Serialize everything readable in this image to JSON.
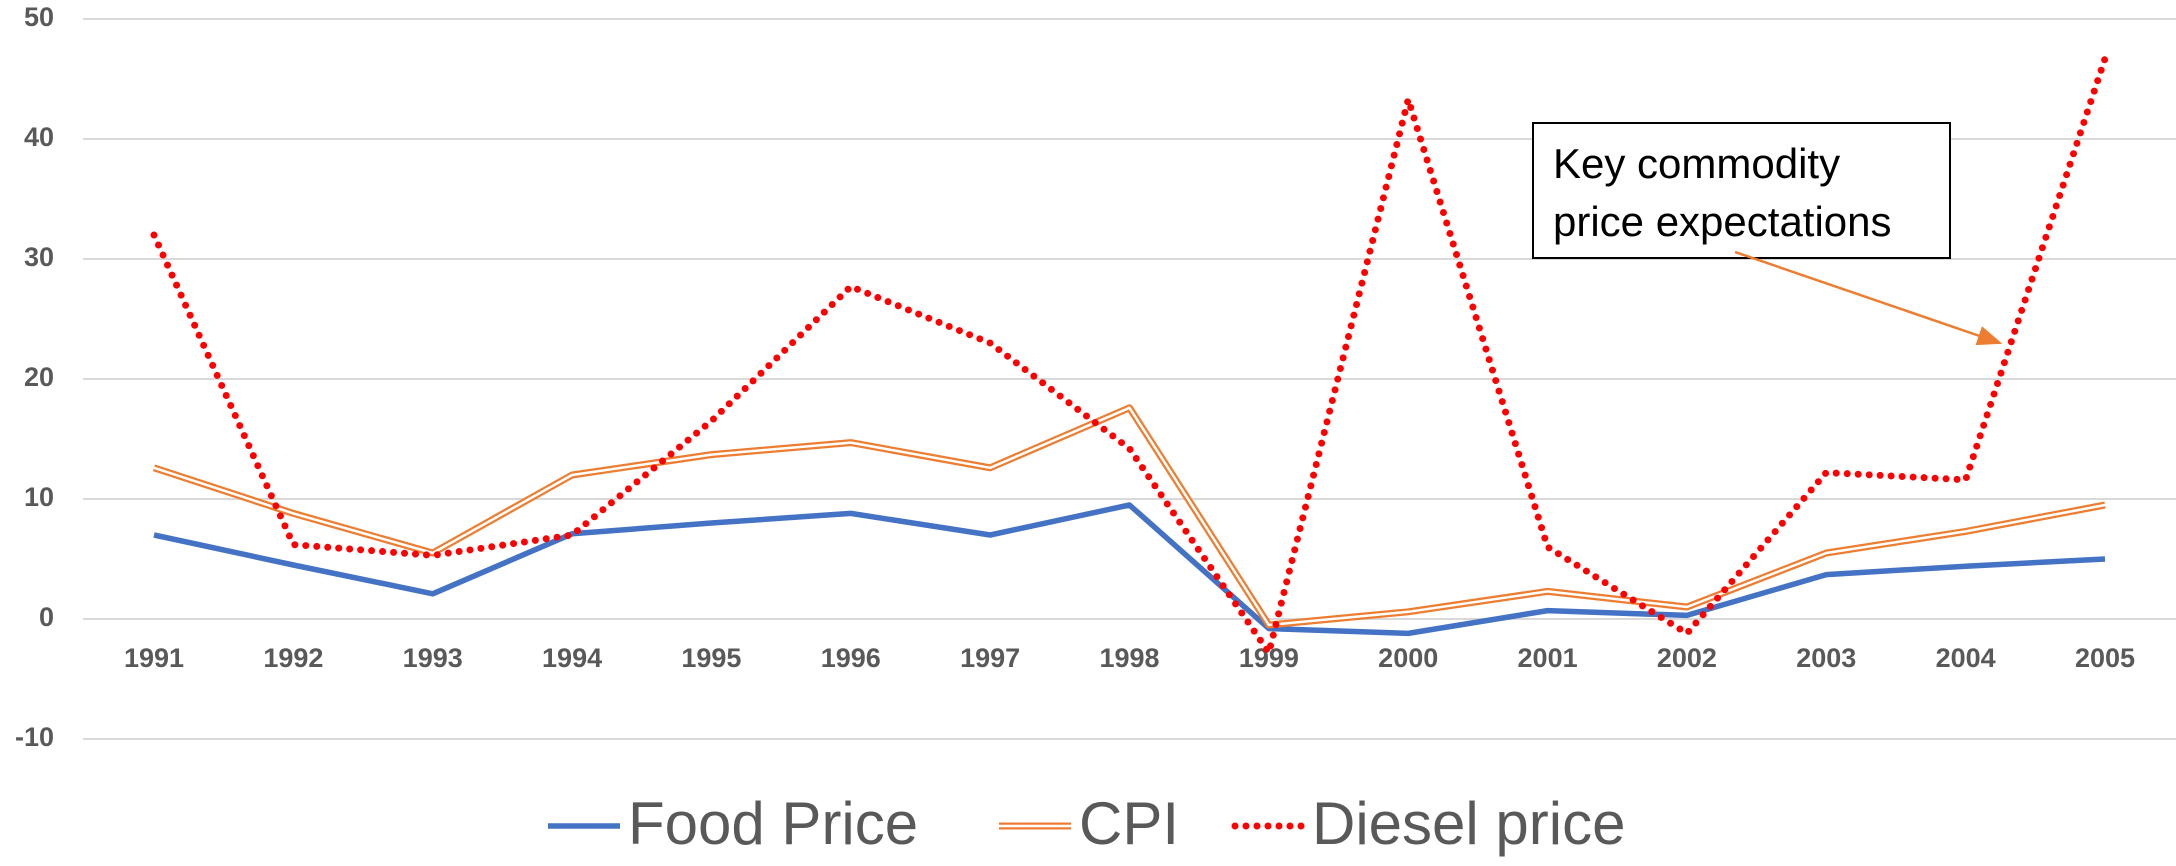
{
  "chart_data": {
    "type": "line",
    "categories": [
      "1991",
      "1992",
      "1993",
      "1994",
      "1995",
      "1996",
      "1997",
      "1998",
      "1999",
      "2000",
      "2001",
      "2002",
      "2003",
      "2004",
      "2005"
    ],
    "series": [
      {
        "name": "Food Price",
        "color": "#4472c4",
        "style": "solid",
        "values": [
          7,
          4.5,
          2.1,
          7.1,
          8,
          8.8,
          7,
          9.5,
          -0.8,
          -1.2,
          0.7,
          0.3,
          3.7,
          4.4,
          5
        ]
      },
      {
        "name": "CPI",
        "color": "#ed7d31",
        "style": "double",
        "values": [
          12.6,
          8.8,
          5.5,
          12,
          13.7,
          14.7,
          12.6,
          17.6,
          -0.5,
          0.6,
          2.3,
          1,
          5.5,
          7.3,
          9.5
        ]
      },
      {
        "name": "Diesel price",
        "color": "#ff0000",
        "style": "dotted",
        "values": [
          32,
          6.2,
          5.3,
          7,
          16.5,
          27.7,
          23,
          14.2,
          -2.8,
          43.3,
          6,
          -1.2,
          12.2,
          11.6,
          46.7
        ]
      }
    ],
    "ylim": [
      -10,
      50
    ],
    "yticks": [
      -10,
      0,
      10,
      20,
      30,
      40,
      50
    ],
    "grid": true,
    "legend": "bottom",
    "annotation": {
      "lines": [
        "Key commodity",
        "price expectations"
      ],
      "color": "#ed7d31"
    }
  }
}
